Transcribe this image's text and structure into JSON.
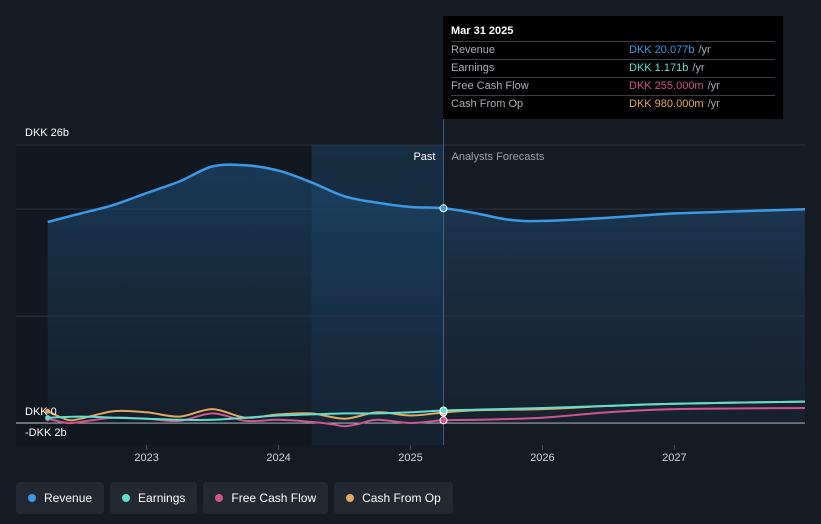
{
  "chart_data": {
    "type": "line",
    "y_axis": {
      "top_label": "DKK 26b",
      "zero_label": "DKK 0",
      "bottom_label": "-DKK 2b",
      "range": [
        -2,
        26
      ],
      "unit": "DKK b"
    },
    "x_axis": {
      "ticks": [
        "2023",
        "2024",
        "2025",
        "2026",
        "2027"
      ],
      "range": [
        2022.26,
        2027.99
      ]
    },
    "divider_x": 2025.25,
    "past_label": "Past",
    "forecast_label": "Analysts Forecasts",
    "series": [
      {
        "name": "Revenue",
        "color": "#3b9ae8",
        "points": [
          [
            2022.25,
            18.8
          ],
          [
            2022.5,
            19.6
          ],
          [
            2022.75,
            20.4
          ],
          [
            2023.0,
            21.5
          ],
          [
            2023.25,
            22.6
          ],
          [
            2023.5,
            24.0
          ],
          [
            2023.75,
            24.1
          ],
          [
            2024.0,
            23.6
          ],
          [
            2024.25,
            22.5
          ],
          [
            2024.5,
            21.2
          ],
          [
            2024.75,
            20.6
          ],
          [
            2025.0,
            20.2
          ],
          [
            2025.25,
            20.08
          ],
          [
            2025.5,
            19.6
          ],
          [
            2025.75,
            19.0
          ],
          [
            2026.0,
            18.9
          ],
          [
            2026.5,
            19.2
          ],
          [
            2027.0,
            19.6
          ],
          [
            2027.5,
            19.8
          ],
          [
            2027.99,
            20.0
          ]
        ]
      },
      {
        "name": "Earnings",
        "color": "#5de0cf",
        "points": [
          [
            2022.25,
            0.5
          ],
          [
            2022.5,
            0.6
          ],
          [
            2022.75,
            0.5
          ],
          [
            2023.0,
            0.4
          ],
          [
            2023.25,
            0.3
          ],
          [
            2023.5,
            0.3
          ],
          [
            2023.75,
            0.5
          ],
          [
            2024.0,
            0.7
          ],
          [
            2024.25,
            0.8
          ],
          [
            2024.5,
            0.9
          ],
          [
            2024.75,
            0.9
          ],
          [
            2025.0,
            1.0
          ],
          [
            2025.25,
            1.171
          ],
          [
            2025.5,
            1.25
          ],
          [
            2026.0,
            1.4
          ],
          [
            2026.5,
            1.6
          ],
          [
            2027.0,
            1.8
          ],
          [
            2027.99,
            2.0
          ]
        ]
      },
      {
        "name": "Free Cash Flow",
        "color": "#d4538c",
        "points": [
          [
            2022.25,
            0.4
          ],
          [
            2022.4,
            0.0
          ],
          [
            2022.5,
            0.1
          ],
          [
            2022.75,
            0.5
          ],
          [
            2023.0,
            0.4
          ],
          [
            2023.25,
            0.2
          ],
          [
            2023.5,
            0.9
          ],
          [
            2023.75,
            0.2
          ],
          [
            2024.0,
            0.3
          ],
          [
            2024.25,
            0.1
          ],
          [
            2024.4,
            -0.1
          ],
          [
            2024.5,
            -0.3
          ],
          [
            2024.6,
            -0.1
          ],
          [
            2024.75,
            0.3
          ],
          [
            2025.0,
            0.0
          ],
          [
            2025.25,
            0.255
          ],
          [
            2025.5,
            0.3
          ],
          [
            2026.0,
            0.5
          ],
          [
            2026.5,
            1.0
          ],
          [
            2027.0,
            1.3
          ],
          [
            2027.99,
            1.4
          ]
        ]
      },
      {
        "name": "Cash From Op",
        "color": "#e8a85a",
        "points": [
          [
            2022.25,
            1.1
          ],
          [
            2022.4,
            0.3
          ],
          [
            2022.5,
            0.4
          ],
          [
            2022.75,
            1.1
          ],
          [
            2023.0,
            1.0
          ],
          [
            2023.25,
            0.6
          ],
          [
            2023.5,
            1.3
          ],
          [
            2023.75,
            0.5
          ],
          [
            2024.0,
            0.8
          ],
          [
            2024.25,
            0.9
          ],
          [
            2024.5,
            0.4
          ],
          [
            2024.75,
            1.0
          ],
          [
            2025.0,
            0.7
          ],
          [
            2025.25,
            0.98
          ],
          [
            2025.5,
            1.2
          ],
          [
            2026.0,
            1.3
          ],
          [
            2026.5,
            1.6
          ],
          [
            2027.0,
            1.8
          ],
          [
            2027.99,
            2.0
          ]
        ]
      }
    ]
  },
  "tooltip": {
    "date": "Mar 31 2025",
    "rows": [
      {
        "label": "Revenue",
        "value": "DKK 20.077b",
        "unit": "/yr",
        "color": "#3b9ae8"
      },
      {
        "label": "Earnings",
        "value": "DKK 1.171b",
        "unit": "/yr",
        "color": "#5de0cf"
      },
      {
        "label": "Free Cash Flow",
        "value": "DKK 255.000m",
        "unit": "/yr",
        "color": "#d4538c"
      },
      {
        "label": "Cash From Op",
        "value": "DKK 980.000m",
        "unit": "/yr",
        "color": "#e8a85a"
      }
    ]
  },
  "legend": [
    {
      "label": "Revenue",
      "color": "#3b9ae8"
    },
    {
      "label": "Earnings",
      "color": "#5de0cf"
    },
    {
      "label": "Free Cash Flow",
      "color": "#d4538c"
    },
    {
      "label": "Cash From Op",
      "color": "#e8a85a"
    }
  ]
}
